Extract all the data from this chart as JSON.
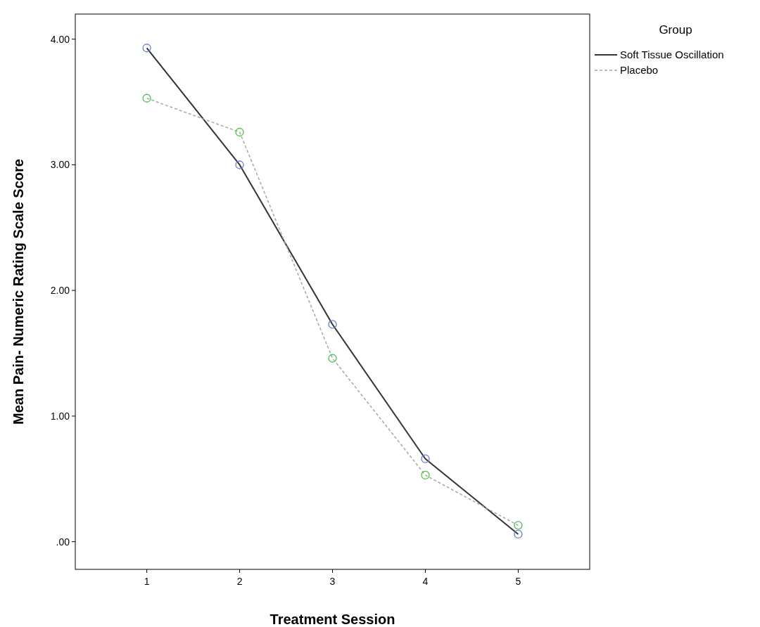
{
  "chart_data": {
    "type": "line",
    "xlabel": "Treatment Session",
    "ylabel": "Mean Pain- Numeric Rating Scale Score",
    "legend_title": "Group",
    "legend": "top right",
    "marker": "circle",
    "grid": false,
    "x": [
      1,
      2,
      3,
      4,
      5
    ],
    "xlim": [
      0.23,
      5.77
    ],
    "xticks": [
      1,
      2,
      3,
      4,
      5
    ],
    "ylim": [
      -0.22,
      4.2
    ],
    "yticks": [
      {
        "value": 0,
        "label": ".00"
      },
      {
        "value": 1,
        "label": "1.00"
      },
      {
        "value": 2,
        "label": "2.00"
      },
      {
        "value": 3,
        "label": "3.00"
      },
      {
        "value": 4,
        "label": "4.00"
      }
    ],
    "series": [
      {
        "name": "Soft Tissue Oscillation",
        "color": "#333333",
        "colors": [
          "#6b7fd0",
          "#6b7fd0",
          "#6b7fd0",
          "#6b7fd0",
          "#6b7fd0"
        ],
        "line_style": "solid",
        "values": [
          3.93,
          3.0,
          1.73,
          0.66,
          0.06
        ]
      },
      {
        "name": "Placebo",
        "color": "#a6a6a6",
        "colors": [
          "#4fc14f",
          "#4fc14f",
          "#4fc14f",
          "#4fc14f",
          "#4fc14f"
        ],
        "line_style": "dashed",
        "values": [
          3.53,
          3.26,
          1.46,
          0.53,
          0.13
        ]
      }
    ]
  }
}
